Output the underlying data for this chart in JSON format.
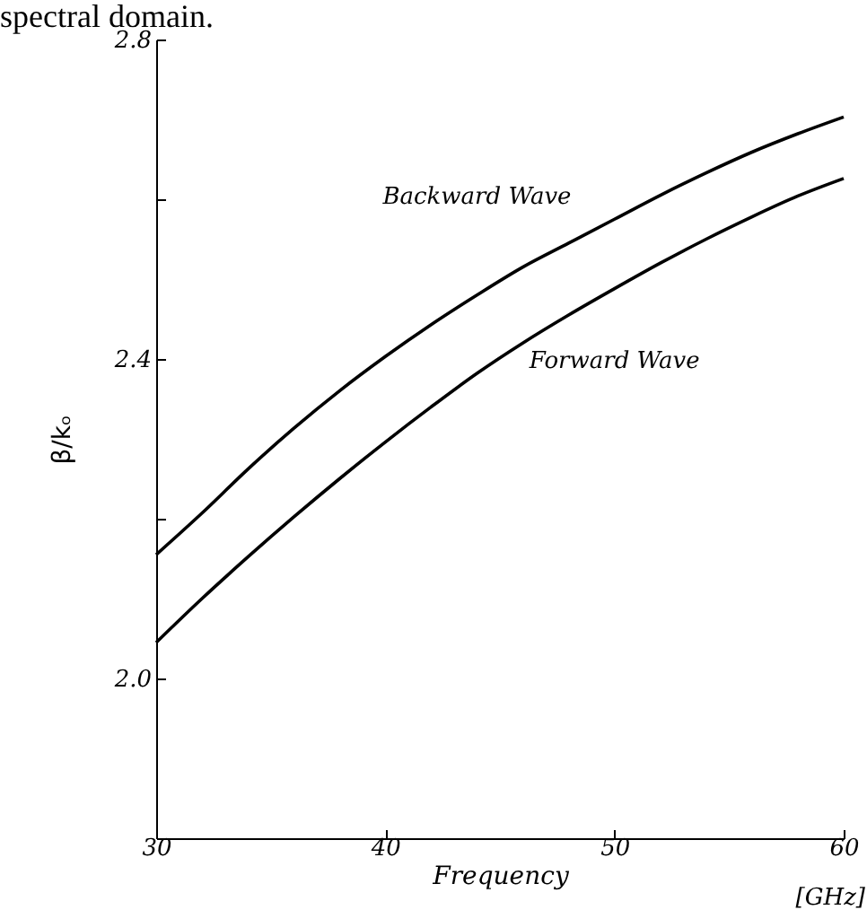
{
  "chart_data": {
    "type": "line",
    "x": [
      30,
      32,
      34,
      36,
      38,
      40,
      42,
      44,
      46,
      48,
      50,
      52,
      54,
      56,
      58,
      60
    ],
    "series": [
      {
        "name": "Backward Wave",
        "color": "#000000",
        "values": [
          2.155,
          2.207,
          2.262,
          2.313,
          2.36,
          2.403,
          2.443,
          2.48,
          2.515,
          2.545,
          2.575,
          2.605,
          2.633,
          2.659,
          2.682,
          2.703
        ]
      },
      {
        "name": "Forward Wave",
        "color": "#000000",
        "values": [
          2.045,
          2.1,
          2.152,
          2.202,
          2.25,
          2.296,
          2.34,
          2.382,
          2.42,
          2.455,
          2.488,
          2.52,
          2.55,
          2.578,
          2.604,
          2.626
        ]
      }
    ],
    "xlabel": "Frequency",
    "ylabel": "β/kₒ",
    "xlim": [
      30,
      60
    ],
    "xticks": [
      30,
      40,
      50,
      60
    ],
    "ylim": [
      1.8,
      2.8
    ],
    "yticks": [
      {
        "value": 2.0,
        "label": "2.0"
      },
      {
        "value": 2.2,
        "label": null
      },
      {
        "value": 2.4,
        "label": "2.4"
      },
      {
        "value": 2.6,
        "label": null
      },
      {
        "value": 2.8,
        "label": "2.8"
      }
    ],
    "annotations": [
      "spectral domain.",
      "[GHz]"
    ],
    "grid": false,
    "legend": false,
    "line_style": "solid",
    "marker": "none"
  }
}
